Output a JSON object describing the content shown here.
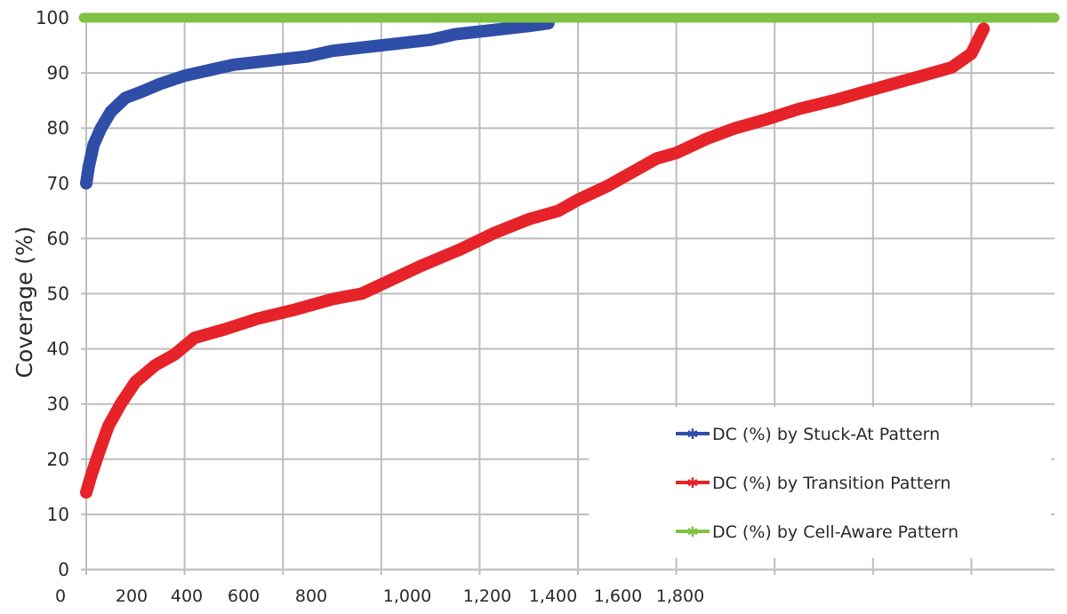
{
  "chart_data": {
    "type": "line",
    "title": "",
    "xlabel": "",
    "ylabel": "Coverage (%)",
    "ylim": [
      0,
      100
    ],
    "xlim": [
      0,
      1980
    ],
    "y_ticks": [
      "0",
      "10",
      "20",
      "30",
      "40",
      "50",
      "60",
      "70",
      "80",
      "90",
      "100"
    ],
    "x_tick_labels": [
      "0",
      "200",
      "400",
      "600",
      "800",
      "1,000",
      "1,200",
      "1,400",
      "1,600",
      "1,800"
    ],
    "grid": true,
    "legend_position": "lower right",
    "series": [
      {
        "name": "DC (%) by Stuck-At Pattern",
        "color": "#2f4ea8",
        "marker": "star",
        "x": [
          0,
          5,
          15,
          30,
          50,
          80,
          110,
          150,
          200,
          250,
          300,
          350,
          400,
          450,
          500,
          550,
          600,
          650,
          700,
          750,
          800,
          850,
          900,
          940
        ],
        "y": [
          70,
          73,
          77,
          80,
          83,
          85.5,
          86.5,
          88,
          89.5,
          90.5,
          91.5,
          92,
          92.5,
          93,
          94,
          94.5,
          95,
          95.5,
          96,
          97,
          97.5,
          98,
          98.5,
          99
        ]
      },
      {
        "name": "DC (%) by Transition Pattern",
        "color": "#e52329",
        "marker": "star",
        "x": [
          0,
          10,
          25,
          45,
          70,
          100,
          140,
          180,
          220,
          280,
          350,
          420,
          500,
          560,
          620,
          680,
          760,
          830,
          900,
          960,
          1000,
          1060,
          1110,
          1160,
          1200,
          1260,
          1320,
          1380,
          1450,
          1520,
          1580,
          1640,
          1700,
          1760,
          1800,
          1825
        ],
        "y": [
          14,
          17,
          21,
          26,
          30,
          34,
          37,
          39,
          42,
          43.5,
          45.5,
          47,
          49,
          50,
          52.5,
          55,
          58,
          61,
          63.5,
          65,
          67,
          69.5,
          72,
          74.5,
          75.5,
          78,
          80,
          81.5,
          83.5,
          85,
          86.5,
          88,
          89.5,
          91,
          93.5,
          98
        ]
      },
      {
        "name": "DC (%) by Cell-Aware Pattern",
        "color": "#7dc242",
        "marker": "star",
        "x": [
          0,
          1980
        ],
        "y": [
          100,
          100
        ]
      }
    ]
  },
  "legend": {
    "items": [
      {
        "label": "DC (%) by Stuck-At Pattern",
        "color": "#2f4ea8"
      },
      {
        "label": "DC (%) by Transition Pattern",
        "color": "#e52329"
      },
      {
        "label": "DC (%) by Cell-Aware Pattern",
        "color": "#7dc242"
      }
    ]
  }
}
